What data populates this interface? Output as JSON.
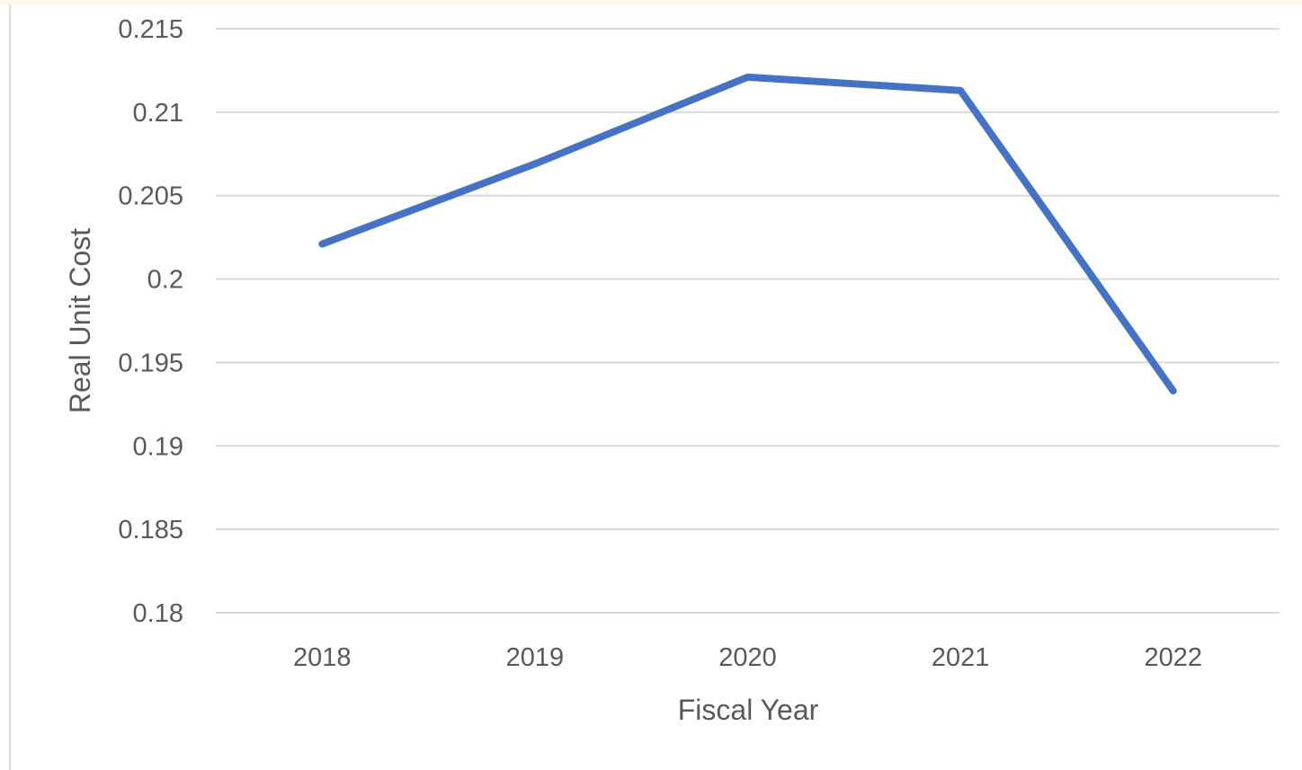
{
  "chart_data": {
    "type": "line",
    "title": "",
    "xlabel": "Fiscal Year",
    "ylabel": "Real Unit Cost",
    "categories": [
      "2018",
      "2019",
      "2020",
      "2021",
      "2022"
    ],
    "series": [
      {
        "values": [
          0.2021,
          0.2069,
          0.2121,
          0.2113,
          0.1933
        ],
        "color": "#4472c4"
      }
    ],
    "ylim": [
      0.18,
      0.215
    ],
    "yticks": [
      "0.18",
      "0.185",
      "0.19",
      "0.195",
      "0.2",
      "0.205",
      "0.21",
      "0.215"
    ],
    "grid": true,
    "legend": "none",
    "gridline_color": "#d9d9d9",
    "text_color": "#595959"
  }
}
